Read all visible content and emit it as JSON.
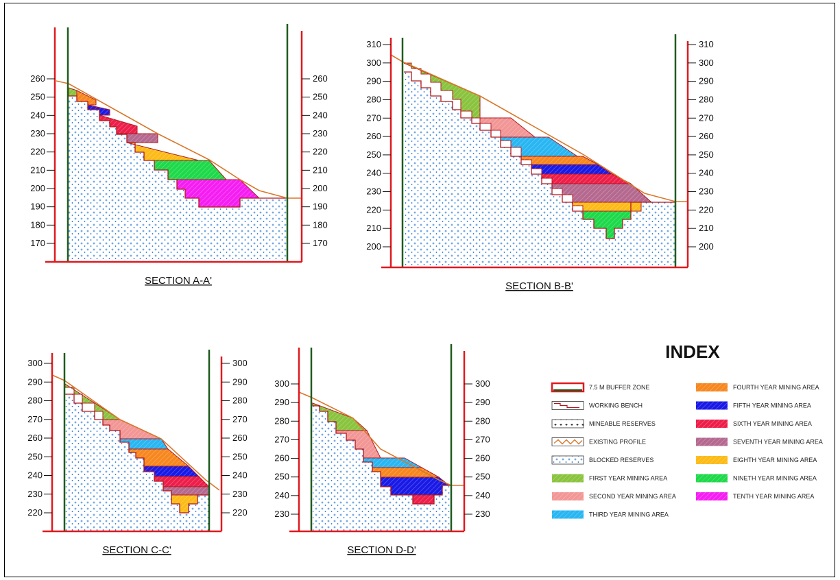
{
  "colors": {
    "buffer_zone": "#e0191f",
    "buffer_inner": "#1e5b1e",
    "blocked": "#1a6fd0",
    "profile": "#d9772a",
    "bench_outline": "#b0161c",
    "years": [
      "#8ac43f",
      "#f29696",
      "#29b6f2",
      "#f7871f",
      "#1a1ae6",
      "#ed1f4a",
      "#b5698f",
      "#fcbb18",
      "#1ed94a",
      "#f51ef2"
    ]
  },
  "sections": [
    {
      "id": "A",
      "title": "SECTION A-A'",
      "axis_ticks": [
        260,
        250,
        240,
        230,
        220,
        210,
        200,
        190,
        180,
        170
      ],
      "bench_elevations": [
        250,
        245,
        240,
        235,
        230,
        225,
        220,
        215,
        210,
        205,
        200,
        195,
        190
      ],
      "mining_years": [
        1,
        4,
        5,
        6,
        7,
        8,
        9,
        10
      ]
    },
    {
      "id": "B",
      "title": "SECTION B-B'",
      "axis_ticks": [
        310,
        300,
        290,
        280,
        270,
        260,
        250,
        240,
        230,
        220,
        210,
        200
      ],
      "bench_elevations": [
        295,
        290,
        285,
        280,
        275,
        270,
        265,
        260,
        255,
        250,
        245,
        240,
        235,
        230,
        225,
        220,
        215,
        210,
        205
      ],
      "mining_years": [
        1,
        2,
        3,
        4,
        5,
        6,
        7,
        8,
        9
      ]
    },
    {
      "id": "C",
      "title": "SECTION C-C'",
      "axis_ticks": [
        300,
        290,
        280,
        270,
        260,
        250,
        240,
        230,
        220
      ],
      "bench_elevations": [
        285,
        280,
        275,
        270,
        265,
        260,
        255,
        250,
        245,
        240,
        235,
        230,
        225,
        220
      ],
      "mining_years": [
        1,
        2,
        3,
        4,
        5,
        6,
        7,
        8
      ]
    },
    {
      "id": "D",
      "title": "SECTION D-D'",
      "axis_ticks": [
        300,
        290,
        280,
        270,
        260,
        250,
        240,
        230
      ],
      "bench_elevations": [
        290,
        285,
        280,
        275,
        270,
        265,
        260,
        255,
        250,
        245,
        240,
        235
      ],
      "mining_years": [
        1,
        2,
        3,
        4,
        5,
        6
      ]
    }
  ],
  "index": {
    "title": "INDEX",
    "items": [
      {
        "label": "7.5 M BUFFER ZONE",
        "symbol": "buffer"
      },
      {
        "label": "WORKING BENCH",
        "symbol": "bench"
      },
      {
        "label": "MINEABLE RESERVES",
        "symbol": "mineable"
      },
      {
        "label": "EXISTING PROFILE",
        "symbol": "profile"
      },
      {
        "label": "BLOCKED RESERVES",
        "symbol": "blocked"
      },
      {
        "label": "FIRST YEAR MINING AREA",
        "symbol": "year",
        "year": 1
      },
      {
        "label": "SECOND YEAR MINING AREA",
        "symbol": "year",
        "year": 2
      },
      {
        "label": "THIRD YEAR MINING AREA",
        "symbol": "year",
        "year": 3
      },
      {
        "label": "FOURTH YEAR MINING AREA",
        "symbol": "year",
        "year": 4
      },
      {
        "label": "FIFTH YEAR MINING AREA",
        "symbol": "year",
        "year": 5
      },
      {
        "label": "SIXTH YEAR MINING AREA",
        "symbol": "year",
        "year": 6
      },
      {
        "label": "SEVENTH YEAR MINING AREA",
        "symbol": "year",
        "year": 7
      },
      {
        "label": "EIGHTH YEAR MINING AREA",
        "symbol": "year",
        "year": 8
      },
      {
        "label": "NINETH YEAR MINING AREA",
        "symbol": "year",
        "year": 9
      },
      {
        "label": "TENTH YEAR MINING AREA",
        "symbol": "year",
        "year": 10
      }
    ]
  }
}
